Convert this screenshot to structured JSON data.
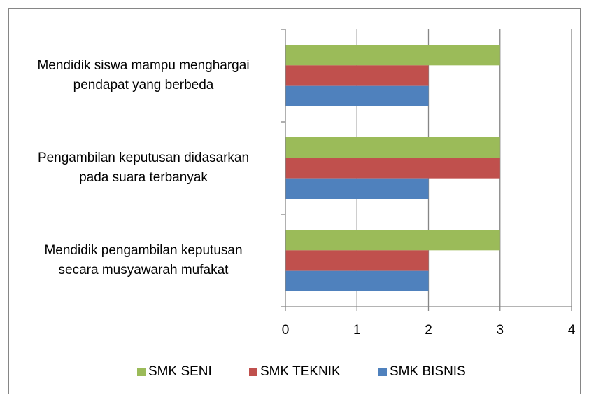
{
  "chart_data": {
    "type": "barh",
    "categories": [
      "Mendidik siswa mampu menghargai\npendapat yang berbeda",
      "Pengambilan keputusan didasarkan\npada suara terbanyak",
      "Mendidik pengambilan keputusan\nsecara musyawarah mufakat"
    ],
    "series": [
      {
        "name": "SMK SENI",
        "color": "#9bbb59",
        "values": [
          3,
          3,
          3
        ]
      },
      {
        "name": "SMK TEKNIK",
        "color": "#c0504d",
        "values": [
          2,
          3,
          2
        ]
      },
      {
        "name": "SMK BISNIS",
        "color": "#4f81bd",
        "values": [
          2,
          2,
          2
        ]
      }
    ],
    "xlim": [
      0,
      4
    ],
    "xticks": [
      0,
      1,
      2,
      3,
      4
    ],
    "grid": true,
    "legend": "bottom"
  }
}
